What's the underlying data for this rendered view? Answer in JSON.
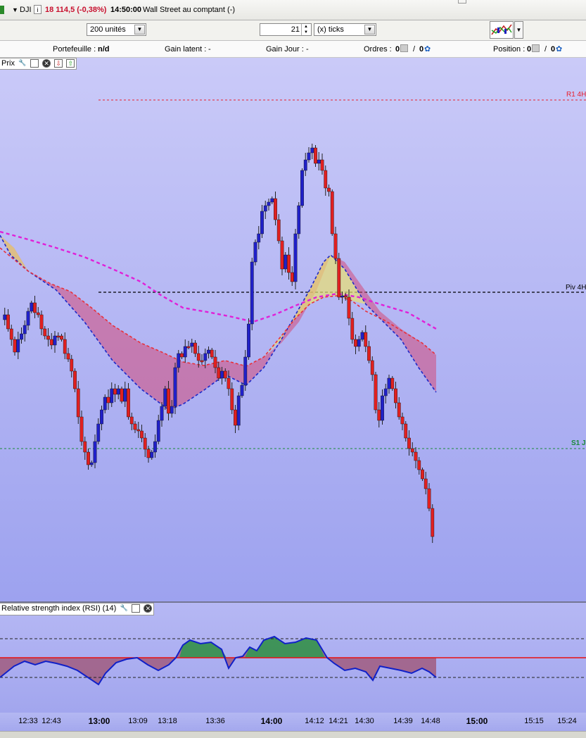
{
  "header": {
    "symbol": "DJI",
    "info_icon": "i",
    "price": "18 114,5 (-0,38%)",
    "time": "14:50:00",
    "instrument": "Wall Street au comptant (-)",
    "colors": {
      "price": "#c8102e"
    }
  },
  "toolbar": {
    "units_value": "200 unités",
    "ticks_value": "21",
    "ticks_unit": "(x) ticks"
  },
  "infobar": {
    "portfolio_label": "Portefeuille :",
    "portfolio_value": "n/d",
    "latent_label": "Gain latent :",
    "latent_value": "-",
    "day_label": "Gain Jour :",
    "day_value": "-",
    "orders_label": "Ordres :",
    "orders_value_a": "0",
    "orders_value_b": "0",
    "position_label": "Position :",
    "position_value_a": "0",
    "position_value_b": "0"
  },
  "price_panel": {
    "title": "Prix",
    "levels": [
      {
        "label": "R1 4H",
        "color": "#e8202e"
      },
      {
        "label": "Piv 4H",
        "color": "#000000"
      },
      {
        "label": "S1 J",
        "color": "#1a8a3a"
      }
    ]
  },
  "rsi_panel": {
    "title": "Relative strength index (RSI) (14)"
  },
  "time_axis": {
    "ticks": [
      {
        "label": "12:33",
        "major": false
      },
      {
        "label": "12:43",
        "major": false
      },
      {
        "label": "13:00",
        "major": true
      },
      {
        "label": "13:09",
        "major": false
      },
      {
        "label": "13:18",
        "major": false
      },
      {
        "label": "13:36",
        "major": false
      },
      {
        "label": "14:00",
        "major": true
      },
      {
        "label": "14:12",
        "major": false
      },
      {
        "label": "14:21",
        "major": false
      },
      {
        "label": "14:30",
        "major": false
      },
      {
        "label": "14:39",
        "major": false
      },
      {
        "label": "14:48",
        "major": false
      },
      {
        "label": "15:00",
        "major": true
      },
      {
        "label": "15:15",
        "major": false
      },
      {
        "label": "15:24",
        "major": false
      }
    ]
  },
  "chart_data": {
    "type": "candlestick",
    "up_color": "#2020c8",
    "down_color": "#e02020",
    "ma_fast_color": "#e8303a",
    "ma_slow_color": "#e020d8",
    "band_color": "#1c28c8"
  }
}
